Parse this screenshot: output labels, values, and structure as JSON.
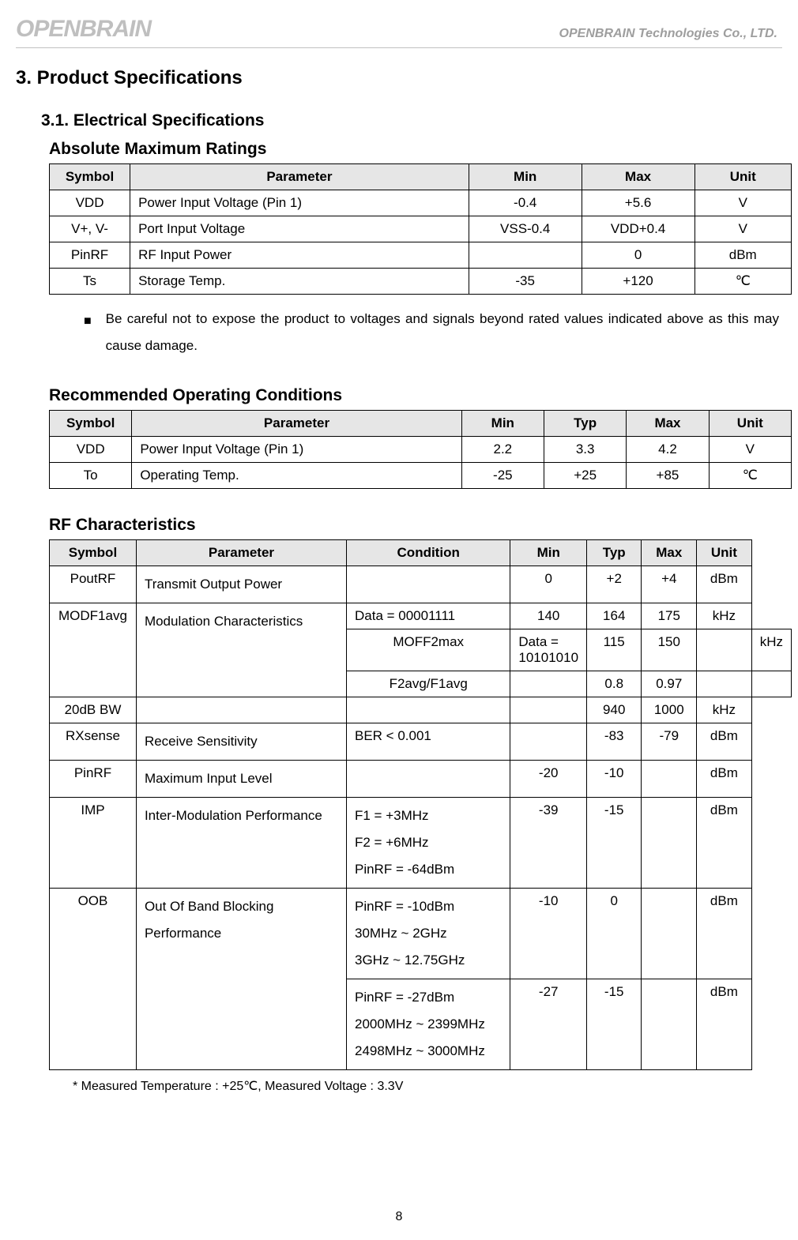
{
  "header": {
    "logo_text": "OPENBRAIN",
    "company": "OPENBRAIN Technologies Co., LTD."
  },
  "section_heading": "3.  Product Specifications",
  "subsection_heading": "3.1.  Electrical Specifications",
  "table1": {
    "title": "Absolute Maximum Ratings",
    "columns": [
      "Symbol",
      "Parameter",
      "Min",
      "Max",
      "Unit"
    ],
    "col_widths": [
      "100px",
      "420px",
      "140px",
      "140px",
      "120px"
    ],
    "rows": [
      {
        "symbol": "VDD",
        "parameter": "Power Input Voltage (Pin 1)",
        "min": "-0.4",
        "max": "+5.6",
        "unit": "V"
      },
      {
        "symbol": "V+, V-",
        "parameter": "Port Input Voltage",
        "min": "VSS-0.4",
        "max": "VDD+0.4",
        "unit": "V"
      },
      {
        "symbol": "PinRF",
        "parameter": "RF Input Power",
        "min": "",
        "max": "0",
        "unit": "dBm"
      },
      {
        "symbol": "Ts",
        "parameter": "Storage Temp.",
        "min": "-35",
        "max": "+120",
        "unit": "℃"
      }
    ],
    "note_bullet": "■",
    "note": "Be careful not to expose the product to voltages and signals beyond rated values indicated above as this may cause damage."
  },
  "table2": {
    "title": "Recommended Operating Conditions",
    "columns": [
      "Symbol",
      "Parameter",
      "Min",
      "Typ",
      "Max",
      "Unit"
    ],
    "col_widths": [
      "100px",
      "400px",
      "100px",
      "100px",
      "100px",
      "100px"
    ],
    "rows": [
      {
        "symbol": "VDD",
        "parameter": "Power Input Voltage (Pin 1)",
        "min": "2.2",
        "typ": "3.3",
        "max": "4.2",
        "unit": "V"
      },
      {
        "symbol": "To",
        "parameter": "Operating Temp.",
        "min": "-25",
        "typ": "+25",
        "max": "+85",
        "unit": "℃"
      }
    ]
  },
  "table3": {
    "title": "RF Characteristics",
    "columns": [
      "Symbol",
      "Parameter",
      "Condition",
      "Min",
      "Typ",
      "Max",
      "Unit"
    ],
    "col_widths": [
      "110px",
      "270px",
      "210px",
      "70px",
      "70px",
      "70px",
      "70px"
    ],
    "rows": [
      {
        "symbol": "PoutRF",
        "parameter": "Transmit Output Power",
        "condition": "",
        "min": "0",
        "typ": "+2",
        "max": "+4",
        "unit": "dBm",
        "param_rowspan": 1
      },
      {
        "symbol": "MODF1avg",
        "parameter": "Modulation Characteristics",
        "condition": "Data = 00001111",
        "min": "140",
        "typ": "164",
        "max": "175",
        "unit": "kHz",
        "param_rowspan": 3
      },
      {
        "symbol": "MOFF2max",
        "condition": "Data = 10101010",
        "min": "115",
        "typ": "150",
        "max": "",
        "unit": "kHz"
      },
      {
        "symbol": "F2avg/F1avg",
        "condition": "",
        "min": "0.8",
        "typ": "0.97",
        "max": "",
        "unit": ""
      },
      {
        "symbol": "20dB BW",
        "parameter": "",
        "condition": "",
        "min": "",
        "typ": "940",
        "max": "1000",
        "unit": "kHz",
        "param_rowspan": 1
      },
      {
        "symbol": "RXsense",
        "parameter": "Receive Sensitivity",
        "condition": "BER < 0.001",
        "min": "",
        "typ": "-83",
        "max": "-79",
        "unit": "dBm",
        "param_rowspan": 1
      },
      {
        "symbol": "PinRF",
        "parameter": "Maximum Input Level",
        "condition": "",
        "min": "-20",
        "typ": "-10",
        "max": "",
        "unit": "dBm",
        "param_rowspan": 1
      },
      {
        "symbol": "IMP",
        "parameter": "Inter-Modulation Performance",
        "condition_lines": [
          "F1 = +3MHz",
          "F2 = +6MHz",
          "PinRF = -64dBm"
        ],
        "min": "-39",
        "typ": "-15",
        "max": "",
        "unit": "dBm",
        "param_rowspan": 1
      },
      {
        "symbol": "OOB",
        "parameter": "Out Of Band Blocking Performance",
        "condition_lines": [
          "PinRF = -10dBm",
          "30MHz ~ 2GHz",
          "3GHz ~ 12.75GHz"
        ],
        "min": "-10",
        "typ": "0",
        "max": "",
        "unit": "dBm",
        "param_rowspan": 2
      },
      {
        "condition_lines": [
          "PinRF = -27dBm",
          "2000MHz ~ 2399MHz",
          "2498MHz ~ 3000MHz"
        ],
        "min": "-27",
        "typ": "-15",
        "max": "",
        "unit": "dBm"
      }
    ],
    "footnote": "* Measured Temperature : +25℃, Measured Voltage : 3.3V"
  },
  "page_number": "8",
  "style": {
    "header_bg": "#e6e6e6",
    "border_color": "#000000",
    "logo_color": "#bfbfbf",
    "company_color": "#9e9e9e",
    "body_font_size": 17,
    "heading_font_size": 24,
    "subheading_font_size": 21,
    "font_family": "Arial"
  }
}
